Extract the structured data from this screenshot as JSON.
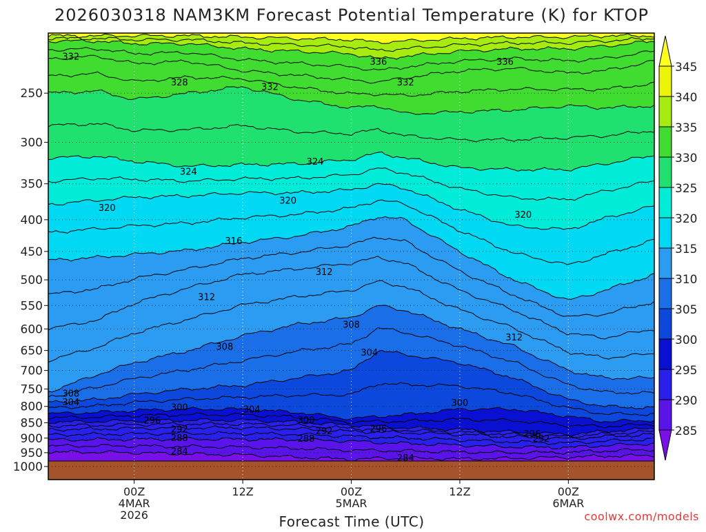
{
  "chart_data": {
    "type": "heatmap",
    "title": "2026030318 NAM3KM Forecast Potential Temperature (K) for KTOP",
    "xlabel": "Forecast Time (UTC)",
    "ylabel": "",
    "credit": "coolwx.com/models",
    "x_start_hours": -9.5,
    "x_end_hours": 57.5,
    "x_ticks": [
      {
        "hours": 0,
        "lines": [
          "00Z",
          "4MAR",
          "2026"
        ]
      },
      {
        "hours": 12,
        "lines": [
          "12Z"
        ]
      },
      {
        "hours": 24,
        "lines": [
          "00Z",
          "5MAR"
        ]
      },
      {
        "hours": 36,
        "lines": [
          "12Z"
        ]
      },
      {
        "hours": 48,
        "lines": [
          "00Z",
          "6MAR"
        ]
      }
    ],
    "y_scale": "log-pressure",
    "y_top_hpa": 200,
    "y_bottom_hpa": 1050,
    "surface_hpa": 980,
    "y_ticks": [
      250,
      300,
      350,
      400,
      450,
      500,
      550,
      600,
      650,
      700,
      750,
      800,
      850,
      900,
      950,
      1000
    ],
    "colorbar": {
      "levels": [
        285,
        290,
        295,
        300,
        305,
        310,
        315,
        320,
        325,
        330,
        335,
        340,
        345
      ],
      "colors": [
        "#7a10e8",
        "#5a14ea",
        "#2a20ec",
        "#0a10d2",
        "#0c48dc",
        "#1a6ee8",
        "#2c9cf2",
        "#00d8f4",
        "#00ecd8",
        "#20e070",
        "#40dc30",
        "#a6ec10",
        "#ecf40a",
        "#ffff20"
      ]
    },
    "surface_color": "#a5532b",
    "grid": "dotted",
    "contour_interval": 4,
    "contour_labels": [
      {
        "hours": -7,
        "hpa": 218,
        "value": 332
      },
      {
        "hours": 27,
        "hpa": 222,
        "value": 336
      },
      {
        "hours": 41,
        "hpa": 222,
        "value": 336
      },
      {
        "hours": 5,
        "hpa": 240,
        "value": 328
      },
      {
        "hours": 15,
        "hpa": 244,
        "value": 332
      },
      {
        "hours": 30,
        "hpa": 240,
        "value": 332
      },
      {
        "hours": 6,
        "hpa": 334,
        "value": 324
      },
      {
        "hours": 20,
        "hpa": 322,
        "value": 324
      },
      {
        "hours": -3,
        "hpa": 382,
        "value": 320
      },
      {
        "hours": 17,
        "hpa": 372,
        "value": 320
      },
      {
        "hours": 43,
        "hpa": 392,
        "value": 320
      },
      {
        "hours": 11,
        "hpa": 432,
        "value": 316
      },
      {
        "hours": 21,
        "hpa": 485,
        "value": 312
      },
      {
        "hours": 8,
        "hpa": 532,
        "value": 312
      },
      {
        "hours": 42,
        "hpa": 618,
        "value": 312
      },
      {
        "hours": 24,
        "hpa": 590,
        "value": 308
      },
      {
        "hours": 10,
        "hpa": 640,
        "value": 308
      },
      {
        "hours": 26,
        "hpa": 654,
        "value": 304
      },
      {
        "hours": -7,
        "hpa": 762,
        "value": 308
      },
      {
        "hours": -7,
        "hpa": 786,
        "value": 304
      },
      {
        "hours": 5,
        "hpa": 802,
        "value": 300
      },
      {
        "hours": 13,
        "hpa": 808,
        "value": 304
      },
      {
        "hours": 19,
        "hpa": 840,
        "value": 300
      },
      {
        "hours": 36,
        "hpa": 788,
        "value": 300
      },
      {
        "hours": 2,
        "hpa": 842,
        "value": 296
      },
      {
        "hours": 27,
        "hpa": 868,
        "value": 296
      },
      {
        "hours": 44,
        "hpa": 885,
        "value": 296
      },
      {
        "hours": 5,
        "hpa": 870,
        "value": 292
      },
      {
        "hours": 21,
        "hpa": 876,
        "value": 292
      },
      {
        "hours": 45,
        "hpa": 900,
        "value": 292
      },
      {
        "hours": 5,
        "hpa": 898,
        "value": 288
      },
      {
        "hours": 19,
        "hpa": 900,
        "value": 288
      },
      {
        "hours": 5,
        "hpa": 944,
        "value": 284
      },
      {
        "hours": 30,
        "hpa": 968,
        "value": 284
      }
    ],
    "profile_hours": [
      -9.5,
      -4,
      0,
      6,
      12,
      18,
      24,
      27,
      30,
      36,
      42,
      48,
      52,
      57.5
    ],
    "isentrope_pressures_hpa": {
      "284": [
        948,
        948,
        950,
        955,
        958,
        966,
        974,
        970,
        970,
        972,
        970,
        966,
        962,
        960
      ],
      "288": [
        906,
        905,
        904,
        903,
        904,
        905,
        910,
        915,
        918,
        924,
        930,
        932,
        925,
        918
      ],
      "292": [
        872,
        870,
        868,
        866,
        866,
        870,
        878,
        880,
        882,
        888,
        896,
        902,
        895,
        888
      ],
      "296": [
        848,
        846,
        844,
        842,
        842,
        848,
        858,
        862,
        866,
        872,
        880,
        888,
        878,
        868
      ],
      "300": [
        822,
        818,
        812,
        808,
        808,
        818,
        838,
        830,
        825,
        808,
        808,
        830,
        846,
        842
      ],
      "304": [
        788,
        780,
        765,
        750,
        740,
        720,
        700,
        650,
        660,
        680,
        720,
        780,
        800,
        805
      ],
      "308": [
        758,
        710,
        680,
        650,
        615,
        590,
        575,
        550,
        560,
        600,
        640,
        700,
        720,
        720
      ],
      "312": [
        600,
        580,
        545,
        515,
        490,
        480,
        470,
        460,
        470,
        520,
        560,
        610,
        620,
        600
      ],
      "316": [
        465,
        460,
        455,
        448,
        435,
        425,
        410,
        395,
        400,
        450,
        500,
        540,
        520,
        490
      ],
      "320": [
        378,
        372,
        368,
        366,
        362,
        362,
        358,
        350,
        356,
        385,
        410,
        415,
        398,
        380
      ],
      "324": [
        318,
        316,
        322,
        328,
        326,
        325,
        320,
        312,
        318,
        330,
        332,
        332,
        325,
        315
      ],
      "328": [
        250,
        248,
        256,
        250,
        244,
        256,
        264,
        262,
        270,
        268,
        266,
        262,
        264,
        262
      ],
      "332": [
        220,
        218,
        224,
        222,
        230,
        234,
        238,
        240,
        236,
        230,
        228,
        232,
        230,
        222
      ],
      "336": [
        206,
        206,
        208,
        208,
        212,
        214,
        216,
        220,
        218,
        214,
        212,
        212,
        210,
        206
      ],
      "340": [
        202,
        202,
        202,
        202,
        203,
        204,
        205,
        207,
        206,
        204,
        203,
        203,
        202,
        202
      ]
    }
  }
}
